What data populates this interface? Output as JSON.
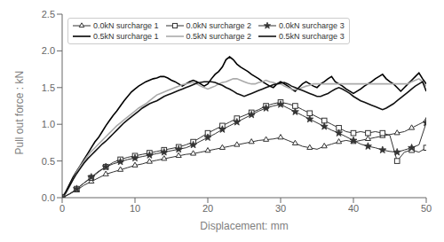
{
  "chart_data": {
    "type": "line",
    "xlabel": "Displacement: mm",
    "ylabel": "Pull out force : kN",
    "xlim": [
      0,
      50
    ],
    "ylim": [
      0,
      2.5
    ],
    "xticks": [
      0,
      10,
      20,
      30,
      40,
      50
    ],
    "yticks": [
      {
        "value": 0,
        "label": "0.0"
      },
      0.5,
      {
        "value": 1.0,
        "label": "1.0"
      },
      1.5,
      {
        "value": 2.0,
        "label": "2.0"
      },
      2.5
    ],
    "grid": false,
    "legend": "upper left",
    "series": [
      {
        "name": "0.0kN surcharge 1",
        "color": "#333333",
        "marker": "triangle",
        "line_style": "solid",
        "x": [
          0,
          1,
          2,
          3,
          4,
          5,
          6,
          7,
          8,
          9,
          10,
          11,
          12,
          13,
          14,
          15,
          16,
          17,
          18,
          19,
          20,
          21,
          22,
          23,
          24,
          25,
          26,
          27,
          28,
          29,
          30,
          31,
          32,
          33,
          34,
          35,
          36,
          37,
          38,
          39,
          40,
          41,
          42,
          43,
          44,
          45,
          46,
          47,
          48,
          49,
          50
        ],
        "values": [
          0,
          0.05,
          0.1,
          0.17,
          0.22,
          0.27,
          0.32,
          0.35,
          0.38,
          0.41,
          0.44,
          0.46,
          0.49,
          0.51,
          0.53,
          0.55,
          0.57,
          0.59,
          0.6,
          0.62,
          0.64,
          0.66,
          0.68,
          0.7,
          0.72,
          0.74,
          0.76,
          0.78,
          0.79,
          0.8,
          0.82,
          0.78,
          0.74,
          0.7,
          0.68,
          0.66,
          0.7,
          0.73,
          0.76,
          0.78,
          0.76,
          0.78,
          0.8,
          0.82,
          0.84,
          0.86,
          0.88,
          0.9,
          0.95,
          1.0,
          1.05
        ]
      },
      {
        "name": "0.0kN surcharge 2",
        "color": "#333333",
        "marker": "square",
        "line_style": "solid",
        "x": [
          0,
          1,
          2,
          3,
          4,
          5,
          6,
          7,
          8,
          9,
          10,
          11,
          12,
          13,
          14,
          15,
          16,
          17,
          18,
          19,
          20,
          21,
          22,
          23,
          24,
          25,
          26,
          27,
          28,
          29,
          30,
          31,
          32,
          33,
          34,
          35,
          36,
          37,
          38,
          39,
          40,
          41,
          42,
          43,
          44,
          45,
          46,
          47,
          48,
          49,
          50
        ],
        "values": [
          0,
          0.05,
          0.12,
          0.2,
          0.27,
          0.35,
          0.42,
          0.48,
          0.52,
          0.55,
          0.57,
          0.59,
          0.61,
          0.63,
          0.65,
          0.67,
          0.69,
          0.72,
          0.76,
          0.82,
          0.88,
          0.93,
          0.98,
          1.03,
          1.08,
          1.12,
          1.16,
          1.2,
          1.25,
          1.28,
          1.3,
          1.28,
          1.25,
          1.2,
          1.15,
          1.1,
          1.05,
          1.0,
          0.95,
          0.9,
          0.88,
          0.9,
          0.88,
          0.9,
          0.88,
          0.85,
          0.5,
          0.62,
          0.65,
          0.62,
          0.68
        ]
      },
      {
        "name": "0.0kN surcharge 3",
        "color": "#333333",
        "marker": "star",
        "line_style": "solid",
        "x": [
          0,
          1,
          2,
          3,
          4,
          5,
          6,
          7,
          8,
          9,
          10,
          11,
          12,
          13,
          14,
          15,
          16,
          17,
          18,
          19,
          20,
          21,
          22,
          23,
          24,
          25,
          26,
          27,
          28,
          29,
          30,
          31,
          32,
          33,
          34,
          35,
          36,
          37,
          38,
          39,
          40,
          41,
          42,
          43,
          44,
          45,
          46,
          47,
          48,
          49,
          50
        ],
        "values": [
          0,
          0.05,
          0.12,
          0.2,
          0.28,
          0.36,
          0.42,
          0.46,
          0.49,
          0.52,
          0.54,
          0.56,
          0.58,
          0.6,
          0.62,
          0.64,
          0.66,
          0.68,
          0.72,
          0.77,
          0.82,
          0.87,
          0.93,
          0.98,
          1.03,
          1.08,
          1.13,
          1.18,
          1.22,
          1.25,
          1.27,
          1.22,
          1.17,
          1.12,
          1.07,
          1.02,
          0.97,
          0.92,
          0.88,
          0.83,
          0.78,
          0.73,
          0.7,
          0.68,
          0.65,
          0.63,
          0.62,
          0.65,
          0.68,
          0.72,
          1.02
        ]
      },
      {
        "name": "0.5kN surcharge 1",
        "color": "#000000",
        "line_style": "solid",
        "x": [
          0,
          0.5,
          1,
          1.5,
          2,
          2.5,
          3,
          3.5,
          4,
          4.5,
          5,
          5.5,
          6,
          6.5,
          7,
          7.5,
          8,
          8.5,
          9,
          9.5,
          10,
          10.5,
          11,
          11.5,
          12,
          12.5,
          13,
          13.5,
          14,
          14.5,
          15,
          15.5,
          16,
          16.5,
          17,
          17.5,
          18,
          18.5,
          19,
          19.5,
          20,
          20.5,
          21,
          21.5,
          22,
          22.5,
          23,
          23.5,
          24,
          24.5,
          25,
          25.5,
          26,
          26.5,
          27,
          27.5,
          28,
          28.5,
          29,
          29.5,
          30,
          30.5,
          31,
          31.5,
          32,
          32.5,
          33,
          33.5,
          34,
          34.5,
          35,
          35.5,
          36,
          36.5,
          37,
          37.5,
          38,
          38.5,
          39,
          39.5,
          40,
          40.5,
          41,
          41.5,
          42,
          42.5,
          43,
          43.5,
          44,
          44.5,
          45,
          45.5,
          46,
          46.5,
          47,
          47.5,
          48,
          48.5,
          49,
          49.5,
          50
        ],
        "values": [
          0,
          0.08,
          0.18,
          0.28,
          0.36,
          0.44,
          0.52,
          0.6,
          0.68,
          0.76,
          0.82,
          0.9,
          0.98,
          1.05,
          1.12,
          1.18,
          1.25,
          1.32,
          1.38,
          1.44,
          1.48,
          1.52,
          1.55,
          1.58,
          1.6,
          1.62,
          1.63,
          1.65,
          1.65,
          1.63,
          1.6,
          1.58,
          1.55,
          1.52,
          1.55,
          1.58,
          1.6,
          1.58,
          1.55,
          1.52,
          1.55,
          1.62,
          1.68,
          1.72,
          1.78,
          1.88,
          1.92,
          1.88,
          1.82,
          1.78,
          1.75,
          1.72,
          1.68,
          1.65,
          1.62,
          1.58,
          1.55,
          1.52,
          1.5,
          1.55,
          1.58,
          1.55,
          1.52,
          1.48,
          1.45,
          1.5,
          1.55,
          1.58,
          1.55,
          1.52,
          1.5,
          1.55,
          1.58,
          1.62,
          1.65,
          1.58,
          1.55,
          1.52,
          1.48,
          1.45,
          1.42,
          1.45,
          1.48,
          1.52,
          1.55,
          1.58,
          1.62,
          1.65,
          1.68,
          1.62,
          1.58,
          1.55,
          1.5,
          1.45,
          1.5,
          1.55,
          1.6,
          1.65,
          1.7,
          1.62,
          1.55
        ]
      },
      {
        "name": "0.5kN surcharge 2",
        "color": "#aaaaaa",
        "line_style": "solid",
        "x": [
          0,
          0.5,
          1,
          1.5,
          2,
          2.5,
          3,
          3.5,
          4,
          4.5,
          5,
          5.5,
          6,
          6.5,
          7,
          7.5,
          8,
          8.5,
          9,
          9.5,
          10,
          10.5,
          11,
          11.5,
          12,
          12.5,
          13,
          13.5,
          14,
          14.5,
          15,
          15.5,
          16,
          16.5,
          17,
          17.5,
          18,
          18.5,
          19,
          19.5,
          20,
          20.5,
          21,
          21.5,
          22,
          22.5,
          23,
          23.5,
          24,
          24.5,
          25,
          25.5,
          26,
          26.5,
          27,
          27.5,
          28,
          28.5,
          29,
          29.5,
          30,
          30.5,
          31,
          31.5,
          32,
          32.5,
          33,
          33.5,
          34,
          34.5,
          35,
          35.5,
          36,
          36.5,
          37,
          37.5,
          38,
          38.5,
          39,
          39.5,
          40,
          40.5,
          41,
          41.5,
          42,
          42.5,
          43,
          43.5,
          44,
          44.5,
          45,
          45.5,
          46,
          46.5,
          47,
          47.5,
          48,
          48.5,
          49,
          49.5,
          50
        ],
        "values": [
          0,
          0.06,
          0.15,
          0.25,
          0.35,
          0.43,
          0.5,
          0.57,
          0.63,
          0.68,
          0.73,
          0.78,
          0.83,
          0.88,
          0.93,
          0.98,
          1.02,
          1.06,
          1.1,
          1.14,
          1.18,
          1.22,
          1.25,
          1.28,
          1.32,
          1.36,
          1.4,
          1.42,
          1.44,
          1.46,
          1.48,
          1.5,
          1.52,
          1.54,
          1.55,
          1.56,
          1.57,
          1.55,
          1.52,
          1.5,
          1.48,
          1.5,
          1.52,
          1.55,
          1.57,
          1.58,
          1.6,
          1.62,
          1.62,
          1.6,
          1.58,
          1.56,
          1.55,
          1.55,
          1.57,
          1.58,
          1.6,
          1.58,
          1.57,
          1.55,
          1.55,
          1.52,
          1.5,
          1.48,
          1.47,
          1.48,
          1.5,
          1.52,
          1.53,
          1.55,
          1.55,
          1.55,
          1.55,
          1.55,
          1.55,
          1.55,
          1.55,
          1.55,
          1.55,
          1.55,
          1.55,
          1.55,
          1.55,
          1.55,
          1.55,
          1.55,
          1.55,
          1.55,
          1.55,
          1.55,
          1.55,
          1.55,
          1.55,
          1.55,
          1.55,
          1.55,
          1.58,
          1.6,
          1.62,
          1.58,
          1.52
        ]
      },
      {
        "name": "0.5kN surcharge 3",
        "color": "#111111",
        "line_style": "solid",
        "x": [
          0,
          0.5,
          1,
          1.5,
          2,
          2.5,
          3,
          3.5,
          4,
          4.5,
          5,
          5.5,
          6,
          6.5,
          7,
          7.5,
          8,
          8.5,
          9,
          9.5,
          10,
          10.5,
          11,
          11.5,
          12,
          12.5,
          13,
          13.5,
          14,
          14.5,
          15,
          15.5,
          16,
          16.5,
          17,
          17.5,
          18,
          18.5,
          19,
          19.5,
          20,
          20.5,
          21,
          21.5,
          22,
          22.5,
          23,
          23.5,
          24,
          24.5,
          25,
          25.5,
          26,
          26.5,
          27,
          27.5,
          28,
          28.5,
          29,
          29.5,
          30,
          30.5,
          31,
          31.5,
          32,
          32.5,
          33,
          33.5,
          34,
          34.5,
          35,
          35.5,
          36,
          36.5,
          37,
          37.5,
          38,
          38.5,
          39,
          39.5,
          40,
          40.5,
          41,
          41.5,
          42,
          42.5,
          43,
          43.5,
          44,
          44.5,
          45,
          45.5,
          46,
          46.5,
          47,
          47.5,
          48,
          48.5,
          49,
          49.5,
          50
        ],
        "values": [
          0,
          0.07,
          0.16,
          0.25,
          0.33,
          0.4,
          0.47,
          0.53,
          0.58,
          0.63,
          0.68,
          0.73,
          0.77,
          0.82,
          0.87,
          0.92,
          0.97,
          1.02,
          1.06,
          1.1,
          1.14,
          1.18,
          1.22,
          1.25,
          1.28,
          1.3,
          1.32,
          1.35,
          1.38,
          1.4,
          1.42,
          1.44,
          1.46,
          1.48,
          1.5,
          1.52,
          1.54,
          1.56,
          1.57,
          1.58,
          1.58,
          1.58,
          1.57,
          1.55,
          1.53,
          1.5,
          1.48,
          1.45,
          1.42,
          1.4,
          1.38,
          1.4,
          1.42,
          1.44,
          1.46,
          1.48,
          1.5,
          1.52,
          1.54,
          1.55,
          1.56,
          1.57,
          1.55,
          1.52,
          1.5,
          1.48,
          1.46,
          1.44,
          1.42,
          1.4,
          1.38,
          1.38,
          1.4,
          1.42,
          1.45,
          1.48,
          1.5,
          1.48,
          1.45,
          1.42,
          1.38,
          1.35,
          1.32,
          1.3,
          1.28,
          1.26,
          1.24,
          1.22,
          1.2,
          1.22,
          1.25,
          1.28,
          1.32,
          1.36,
          1.4,
          1.44,
          1.48,
          1.52,
          1.55,
          1.58,
          1.45
        ]
      }
    ]
  }
}
